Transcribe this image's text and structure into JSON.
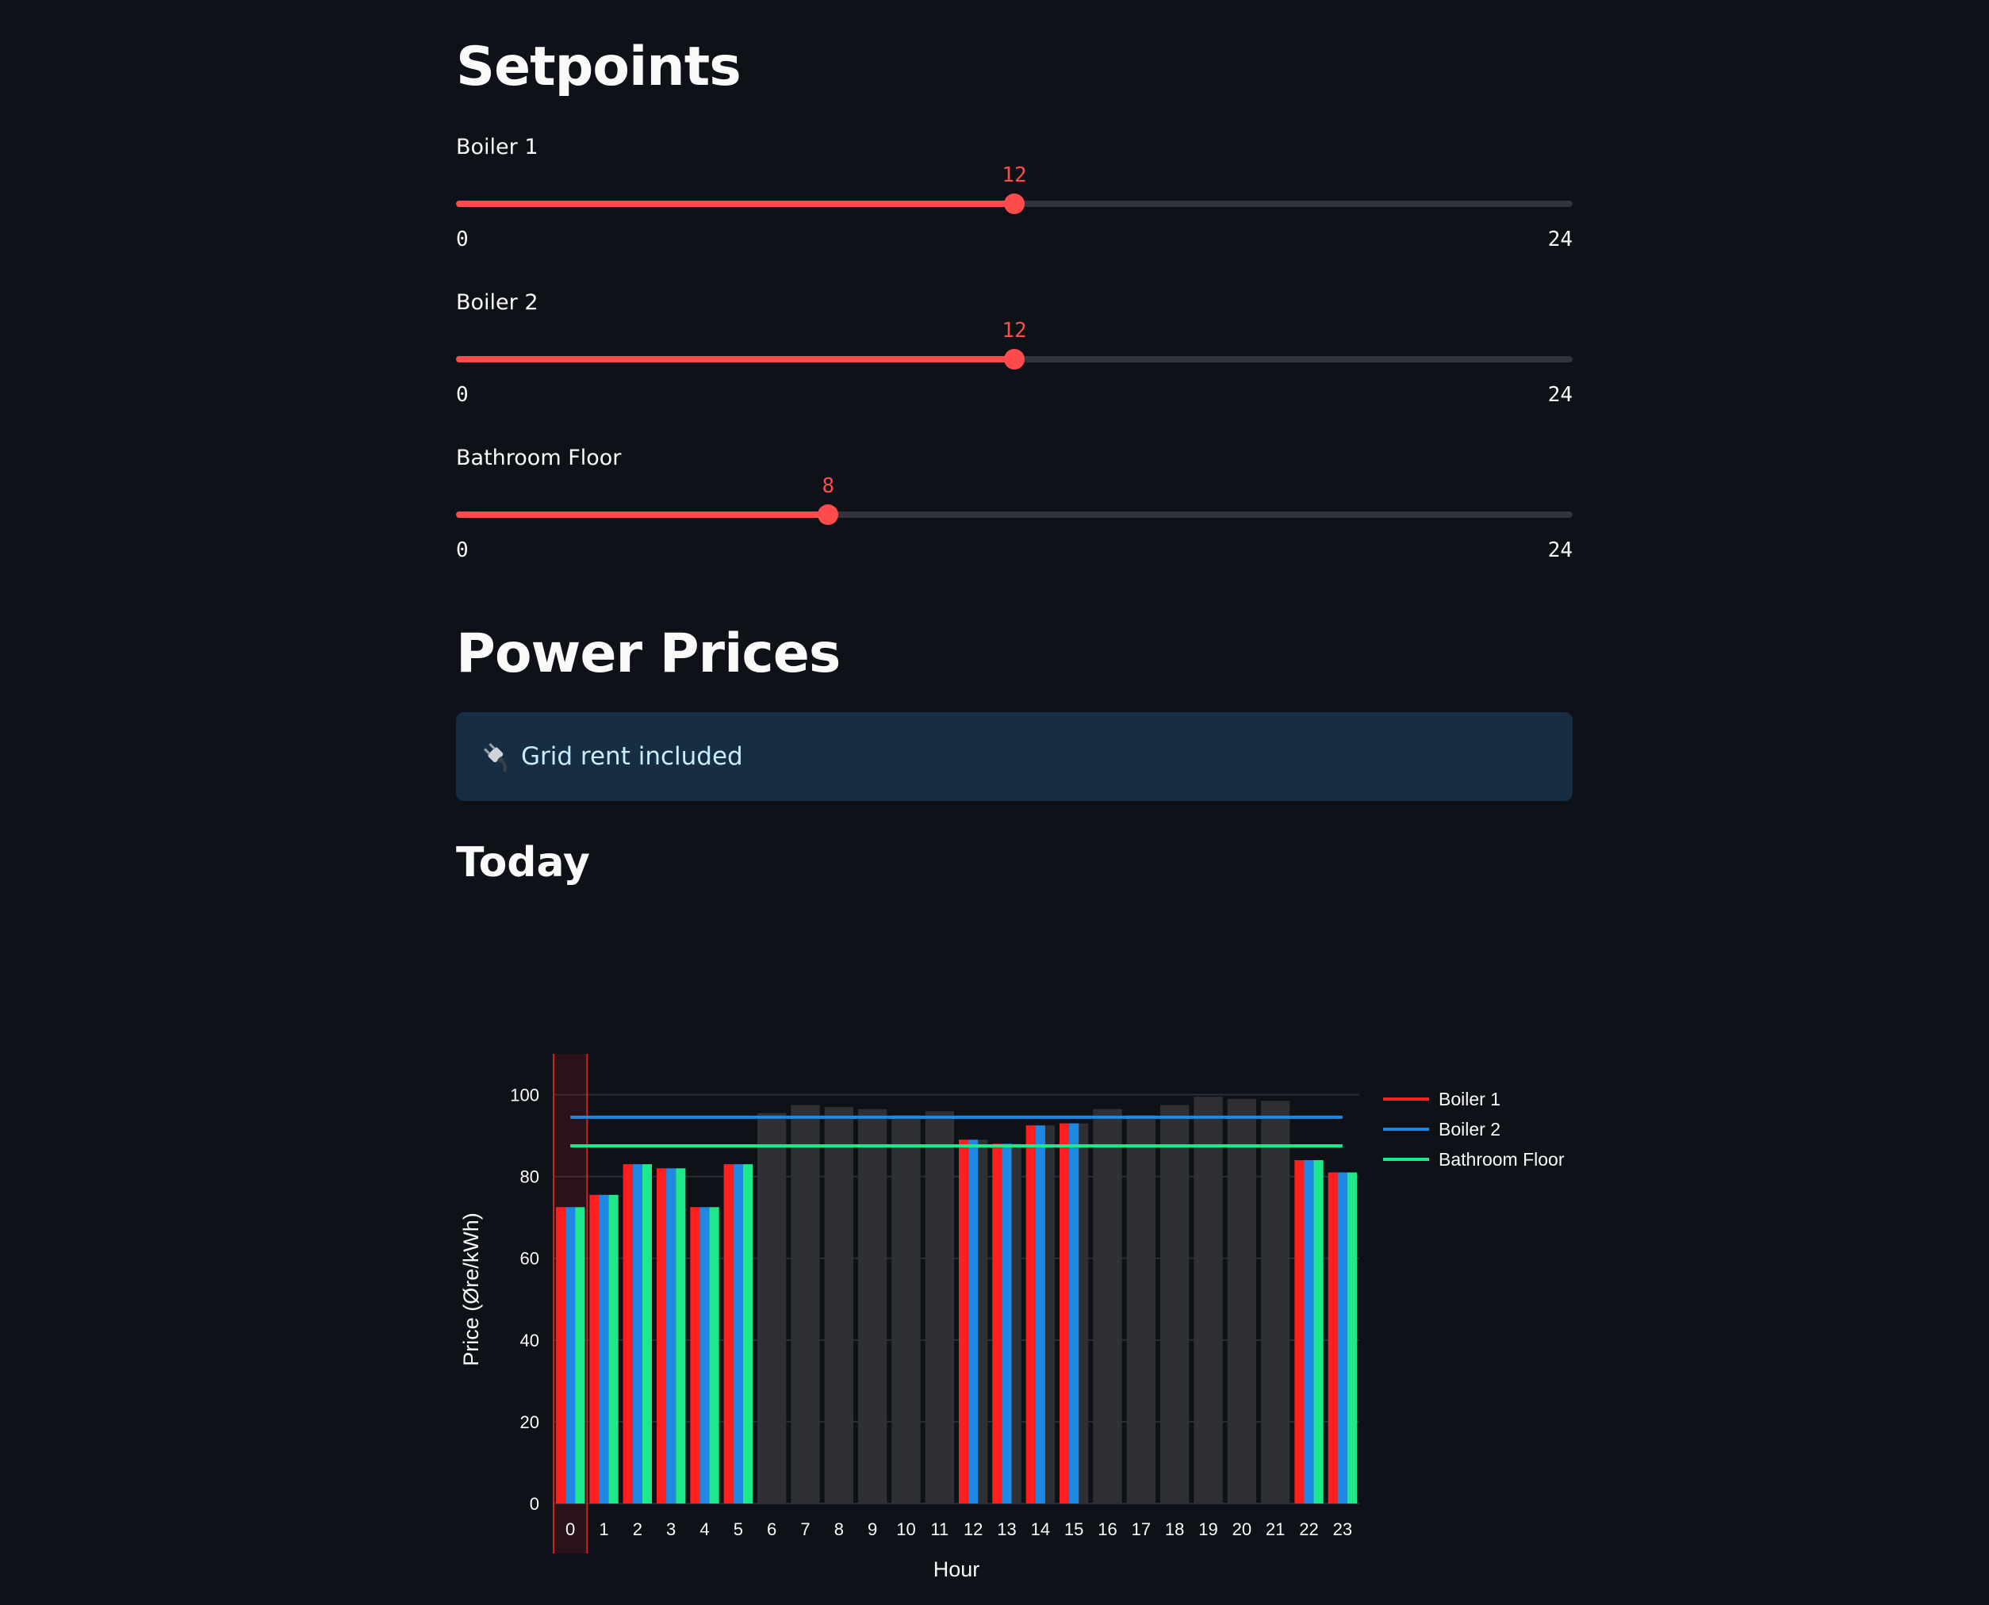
{
  "setpoints": {
    "title": "Setpoints",
    "sliders": [
      {
        "label": "Boiler 1",
        "value": 12,
        "min": 0,
        "max": 24,
        "value_text": "12",
        "min_text": "0",
        "max_text": "24"
      },
      {
        "label": "Boiler 2",
        "value": 12,
        "min": 0,
        "max": 24,
        "value_text": "12",
        "min_text": "0",
        "max_text": "24"
      },
      {
        "label": "Bathroom Floor",
        "value": 8,
        "min": 0,
        "max": 24,
        "value_text": "8",
        "min_text": "0",
        "max_text": "24"
      }
    ]
  },
  "power_prices": {
    "title": "Power Prices",
    "info_text": "Grid rent included",
    "info_icon": "electric-plug-icon",
    "info_color": "#172d43"
  },
  "today": {
    "title": "Today"
  },
  "colors": {
    "accent": "#ff4b4b",
    "background": "#0e1117",
    "boiler1": "#ff1f1f",
    "boiler2": "#1e88e5",
    "bathroom_floor": "#1de88a",
    "inactive_bar": "#2f3034"
  },
  "chart_data": {
    "type": "bar",
    "xlabel": "Hour",
    "ylabel": "Price (Øre/kWh)",
    "ylim": [
      0,
      110
    ],
    "yticks": [
      0,
      20,
      40,
      60,
      80,
      100
    ],
    "categories": [
      "0",
      "1",
      "2",
      "3",
      "4",
      "5",
      "6",
      "7",
      "8",
      "9",
      "10",
      "11",
      "12",
      "13",
      "14",
      "15",
      "16",
      "17",
      "18",
      "19",
      "20",
      "21",
      "22",
      "23"
    ],
    "prices": [
      72.5,
      75.5,
      83,
      82,
      72.5,
      83,
      95.5,
      97.5,
      97,
      96.5,
      95,
      96,
      89,
      88,
      92.5,
      93,
      96.5,
      95,
      97.5,
      99.5,
      99,
      98.5,
      84,
      81
    ],
    "current_hour": 0,
    "legend_position": "right",
    "series": [
      {
        "name": "Boiler 1",
        "threshold": null,
        "active_hours": [
          0,
          1,
          2,
          3,
          4,
          5,
          12,
          13,
          14,
          15,
          22,
          23
        ]
      },
      {
        "name": "Boiler 2",
        "threshold": 94.5,
        "active_hours": [
          0,
          1,
          2,
          3,
          4,
          5,
          12,
          13,
          14,
          15,
          22,
          23
        ]
      },
      {
        "name": "Bathroom Floor",
        "threshold": 87.5,
        "active_hours": [
          0,
          1,
          2,
          3,
          4,
          5,
          22,
          23
        ]
      }
    ],
    "grid": true
  }
}
